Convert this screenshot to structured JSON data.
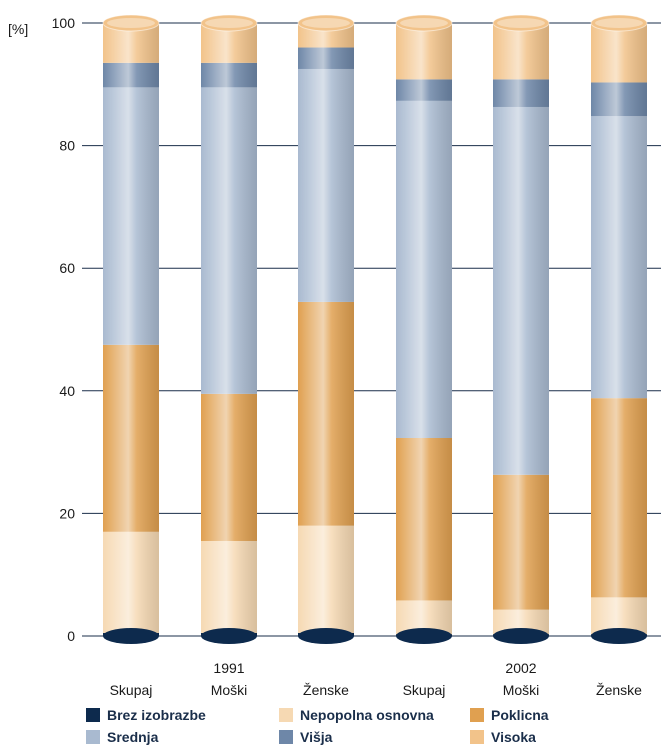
{
  "chart_data": {
    "type": "bar",
    "stacked": true,
    "y_unit_label": "[%]",
    "ylim": [
      0,
      100
    ],
    "y_ticks": [
      "0",
      "20",
      "40",
      "60",
      "80",
      "100"
    ],
    "grid": true,
    "legend_position": "bottom",
    "categories": [
      "Skupaj",
      "Moški",
      "Ženske",
      "Skupaj",
      "Moški",
      "Ženske"
    ],
    "groups": [
      {
        "label": "1991",
        "categories": [
          0,
          1,
          2
        ]
      },
      {
        "label": "2002",
        "categories": [
          3,
          4,
          5
        ]
      }
    ],
    "series": [
      {
        "name": "Brez izobrazbe",
        "color": "#0d2a4d",
        "values": [
          0.5,
          0.5,
          0.5,
          0.3,
          0.3,
          0.3
        ]
      },
      {
        "name": "Nepopolna osnovna",
        "color": "#f6d9b3",
        "values": [
          16.5,
          15,
          17.5,
          5.5,
          4,
          6
        ]
      },
      {
        "name": "Poklicna",
        "color": "#e0a050",
        "values": [
          30.5,
          24,
          36.5,
          26.5,
          22,
          32.5
        ]
      },
      {
        "name": "Srednja",
        "color": "#a9bad0",
        "values": [
          42,
          50,
          38,
          55,
          60,
          46
        ]
      },
      {
        "name": "Višja",
        "color": "#6e87a8",
        "values": [
          4,
          4,
          3.5,
          3.5,
          4.5,
          5.5
        ]
      },
      {
        "name": "Visoka",
        "color": "#f2c38a",
        "values": [
          6.5,
          6.5,
          4,
          9.2,
          9.2,
          9.7
        ]
      }
    ]
  }
}
